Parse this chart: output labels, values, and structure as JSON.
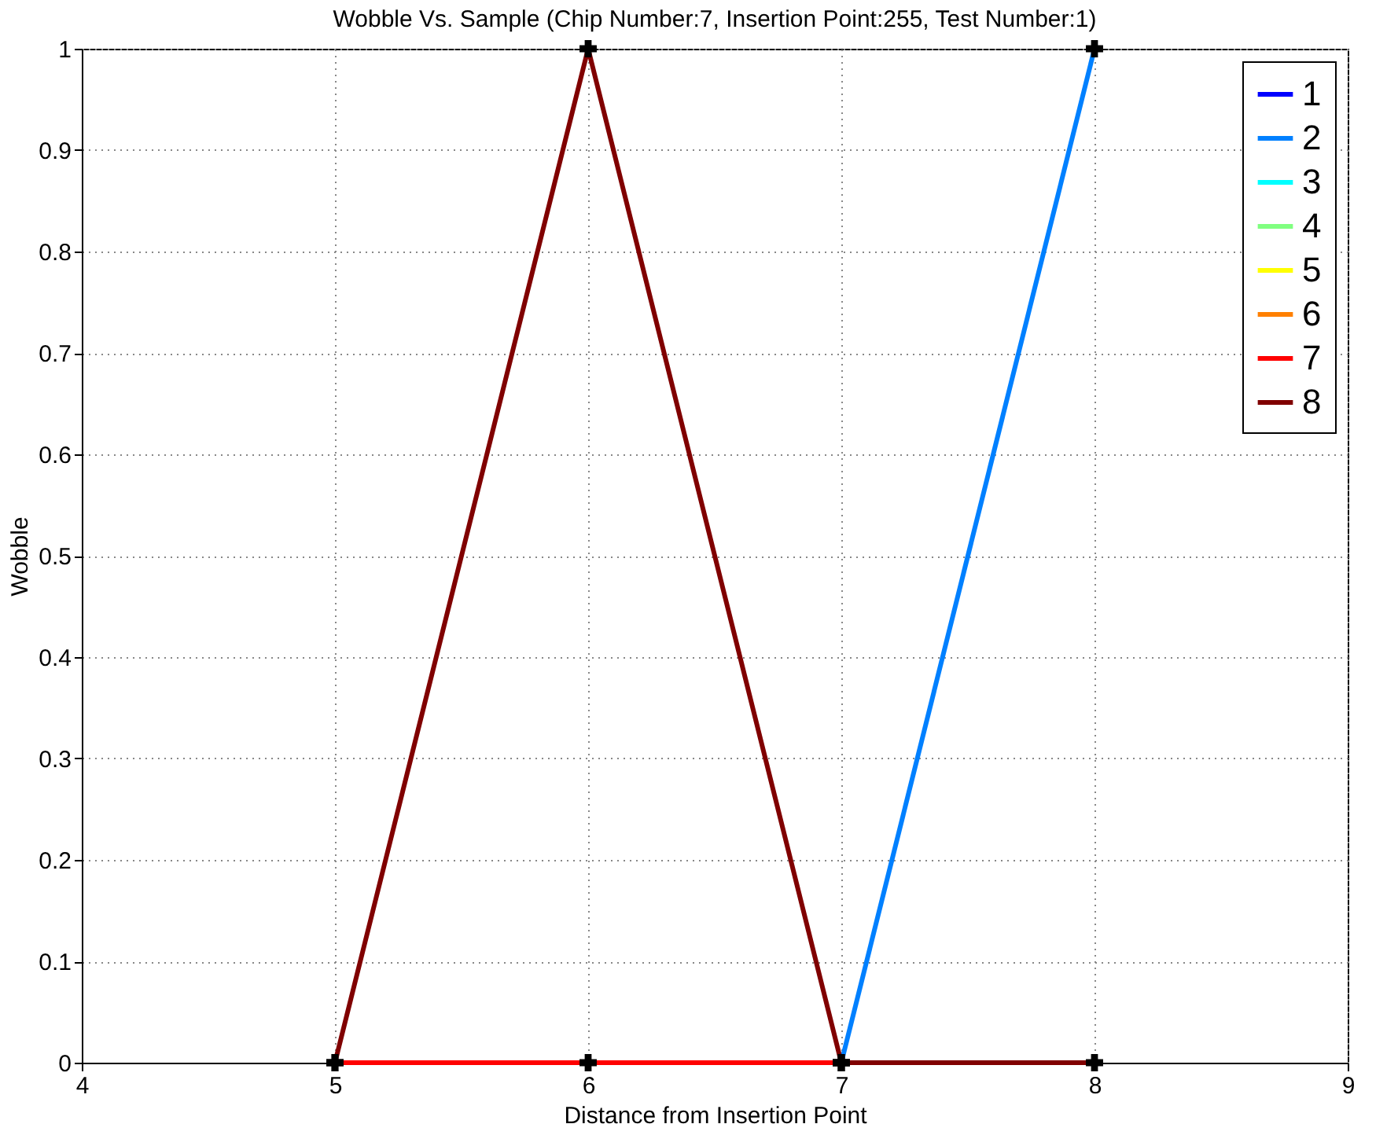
{
  "chart_data": {
    "type": "line",
    "title": "Wobble Vs. Sample (Chip Number:7, Insertion Point:255, Test Number:1)",
    "xlabel": "Distance from Insertion Point",
    "ylabel": "Wobble",
    "x": [
      5,
      6,
      7,
      8
    ],
    "series": [
      {
        "name": "1",
        "color": "#0000ff",
        "values": [
          null,
          null,
          null,
          null
        ]
      },
      {
        "name": "2",
        "color": "#0080ff",
        "values": [
          null,
          null,
          0,
          1
        ]
      },
      {
        "name": "3",
        "color": "#00ffff",
        "values": [
          null,
          null,
          null,
          null
        ]
      },
      {
        "name": "4",
        "color": "#80ff80",
        "values": [
          null,
          null,
          null,
          null
        ]
      },
      {
        "name": "5",
        "color": "#ffff00",
        "values": [
          null,
          null,
          null,
          null
        ]
      },
      {
        "name": "6",
        "color": "#ff8000",
        "values": [
          null,
          null,
          null,
          null
        ]
      },
      {
        "name": "7",
        "color": "#ff0000",
        "values": [
          0,
          0,
          0,
          null
        ]
      },
      {
        "name": "8",
        "color": "#800000",
        "values": [
          0,
          1,
          0,
          0
        ]
      }
    ],
    "xlim": [
      4,
      9
    ],
    "xticks": [
      4,
      5,
      6,
      7,
      8,
      9
    ],
    "ylim": [
      0,
      1
    ],
    "yticks": [
      0,
      0.1,
      0.2,
      0.3,
      0.4,
      0.5,
      0.6,
      0.7,
      0.8,
      0.9,
      1
    ],
    "grid": true,
    "legend": "top right",
    "marker": "cross",
    "line_style": "solid"
  }
}
